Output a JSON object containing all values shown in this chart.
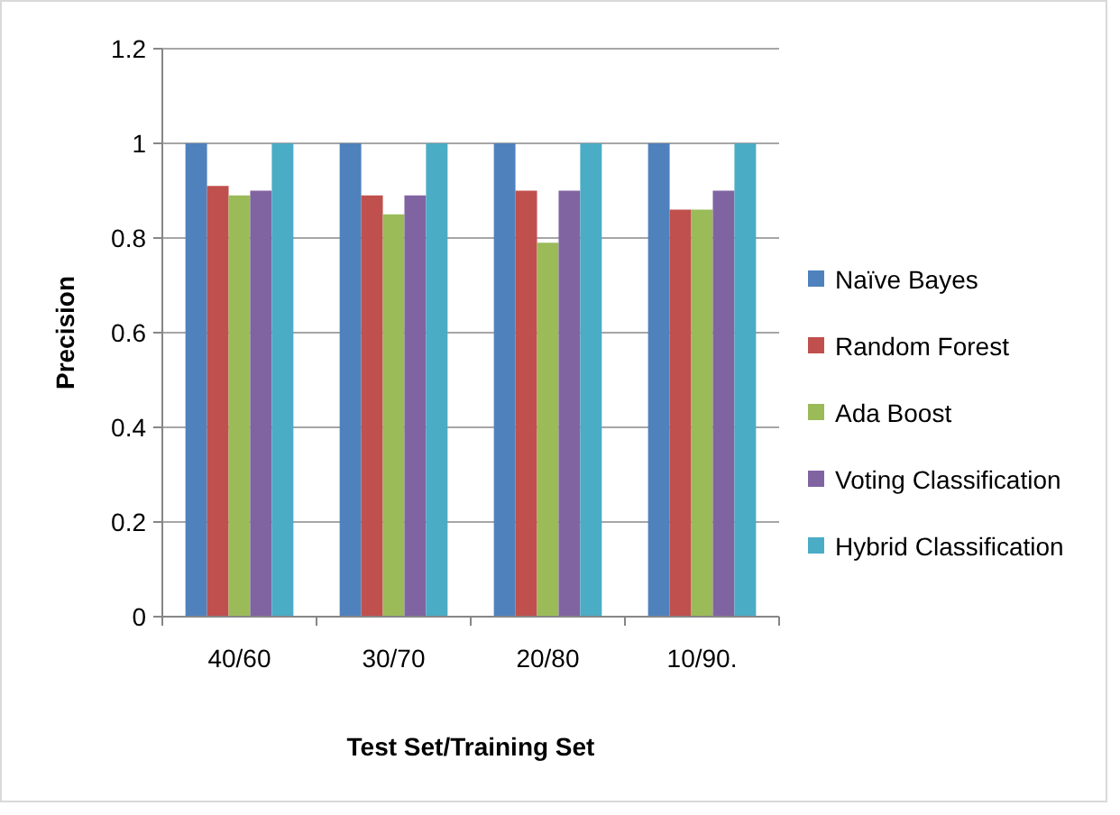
{
  "chart_data": {
    "type": "bar",
    "xlabel": "Test Set/Training Set",
    "ylabel": "Precision",
    "categories": [
      "40/60",
      "30/70",
      "20/80",
      "10/90."
    ],
    "series": [
      {
        "name": "Naïve Bayes",
        "color": "#4f81bd",
        "values": [
          1,
          1,
          1,
          1
        ]
      },
      {
        "name": "Random Forest",
        "color": "#c0504d",
        "values": [
          0.91,
          0.89,
          0.9,
          0.86
        ]
      },
      {
        "name": "Ada Boost",
        "color": "#9bbb59",
        "values": [
          0.89,
          0.85,
          0.79,
          0.86
        ]
      },
      {
        "name": "Voting Classification",
        "color": "#8064a2",
        "values": [
          0.9,
          0.89,
          0.9,
          0.9
        ]
      },
      {
        "name": "Hybrid Classification",
        "color": "#4bacc6",
        "values": [
          1,
          1,
          1,
          1
        ]
      }
    ],
    "ylim": [
      0,
      1.2
    ],
    "yticks": [
      0,
      0.2,
      0.4,
      0.6,
      0.8,
      1,
      1.2
    ],
    "grid": "y",
    "legend": "right"
  }
}
